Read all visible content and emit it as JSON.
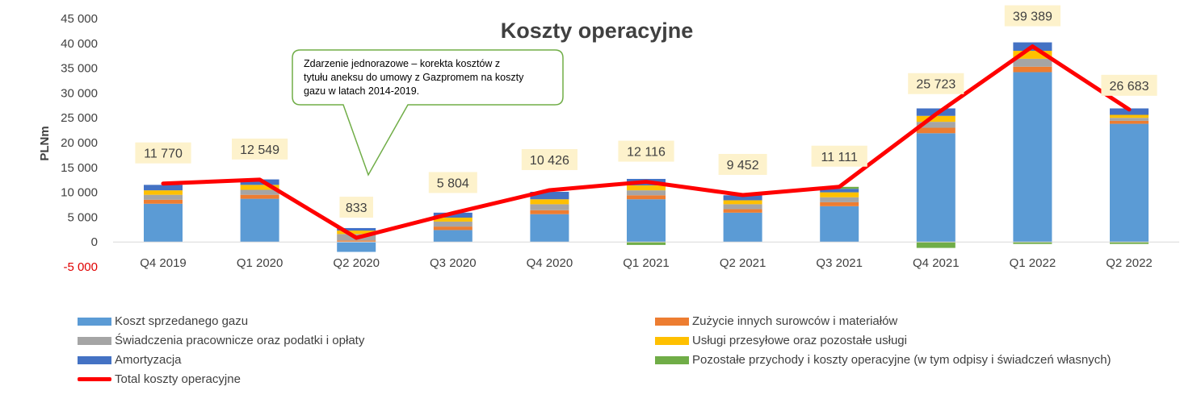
{
  "chart_data": {
    "type": "bar",
    "stacked": true,
    "title": "Koszty operacyjne",
    "xlabel": "",
    "ylabel": "PLNm",
    "ylim": [
      -5000,
      45000
    ],
    "yticks": [
      -5000,
      0,
      5000,
      10000,
      15000,
      20000,
      25000,
      30000,
      35000,
      40000,
      45000
    ],
    "ytick_labels": [
      "-5 000",
      "0",
      "5 000",
      "10 000",
      "15 000",
      "20 000",
      "25 000",
      "30 000",
      "35 000",
      "40 000",
      "45 000"
    ],
    "grid": false,
    "legend_position": "bottom",
    "categories": [
      "Q4 2019",
      "Q1 2020",
      "Q2 2020",
      "Q3 2020",
      "Q4 2020",
      "Q1 2021",
      "Q2 2021",
      "Q3 2021",
      "Q4 2021",
      "Q1 2022",
      "Q2 2022"
    ],
    "series": [
      {
        "name": "Koszt sprzedanego gazu",
        "color": "#5b9bd5",
        "values": [
          7700,
          8700,
          -2000,
          2400,
          5600,
          8600,
          5900,
          7200,
          21900,
          34200,
          23800
        ]
      },
      {
        "name": "Zużycie innych surowców i materiałów",
        "color": "#ed7d31",
        "values": [
          800,
          800,
          300,
          700,
          800,
          800,
          700,
          800,
          1100,
          1100,
          600
        ]
      },
      {
        "name": "Świadczenia pracownicze oraz podatki i opłaty",
        "color": "#a5a5a5",
        "values": [
          1000,
          1000,
          1300,
          1000,
          1200,
          1000,
          1000,
          1000,
          1200,
          1600,
          600
        ]
      },
      {
        "name": "Usługi przesyłowe oraz pozostałe usługi",
        "color": "#ffc000",
        "values": [
          900,
          1000,
          700,
          800,
          1000,
          1000,
          800,
          1000,
          1200,
          1600,
          600
        ]
      },
      {
        "name": "Amortyzacja",
        "color": "#4472c4",
        "values": [
          1100,
          1100,
          500,
          1000,
          1500,
          1300,
          1000,
          700,
          1500,
          1700,
          1300
        ]
      },
      {
        "name": "Pozostałe przychody i koszty operacyjne (w tym odpisy i świadczeń własnych)",
        "color": "#70ad47",
        "values": [
          0,
          0,
          0,
          0,
          0,
          -600,
          0,
          400,
          -1200,
          -400,
          -400
        ]
      }
    ],
    "line": {
      "name": "Total koszty operacyjne",
      "color": "#ff0000",
      "values": [
        11770,
        12549,
        833,
        5804,
        10426,
        12116,
        9452,
        11111,
        25723,
        39389,
        26683
      ],
      "labels": [
        "11 770",
        "12 549",
        "833",
        "5 804",
        "10 426",
        "12 116",
        "9 452",
        "11 111",
        "25 723",
        "39 389",
        "26 683"
      ]
    },
    "annotations": [
      {
        "text": "Zdarzenie jednorazowe – korekta kosztów z tytułu aneksu do umowy z Gazpromem na koszty gazu w latach 2014-2019.",
        "lines": [
          "Zdarzenie jednorazowe – korekta kosztów z",
          "tytułu aneksu do umowy z Gazpromem na koszty",
          "gazu w latach 2014-2019."
        ],
        "target_category": "Q2 2020",
        "border_color": "#70ad47"
      }
    ]
  }
}
